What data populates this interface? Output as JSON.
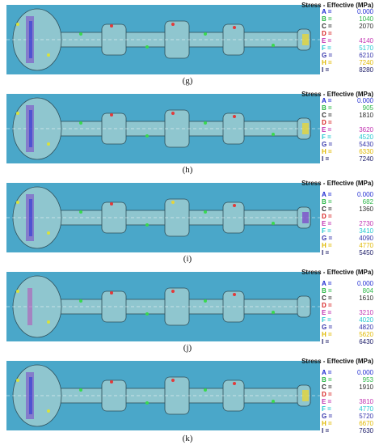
{
  "panels": [
    {
      "header": "Stress - Effective (MPa)",
      "caption": "(g)",
      "legend": [
        {
          "letter": "A =",
          "value": "0.000",
          "color": "#1f2bd1"
        },
        {
          "letter": "B =",
          "value": "1040",
          "color": "#2eb84a"
        },
        {
          "letter": "C =",
          "value": "2070",
          "color": "#2b2b2b"
        },
        {
          "letter": "D =",
          "value": "",
          "color": "#d92626"
        },
        {
          "letter": "E =",
          "value": "4140",
          "color": "#c030b0"
        },
        {
          "letter": "F =",
          "value": "5170",
          "color": "#23c8d0"
        },
        {
          "letter": "G =",
          "value": "6210",
          "color": "#3333aa"
        },
        {
          "letter": "H =",
          "value": "7240",
          "color": "#e0b800"
        },
        {
          "letter": "I =",
          "value": "8280",
          "color": "#1a1a66"
        }
      ]
    },
    {
      "header": "Stress - Effective (MPa)",
      "caption": "(h)",
      "legend": [
        {
          "letter": "A =",
          "value": "0.000",
          "color": "#1f2bd1"
        },
        {
          "letter": "B =",
          "value": "905",
          "color": "#2eb84a"
        },
        {
          "letter": "C =",
          "value": "1810",
          "color": "#2b2b2b"
        },
        {
          "letter": "D =",
          "value": "",
          "color": "#d92626"
        },
        {
          "letter": "E =",
          "value": "3620",
          "color": "#c030b0"
        },
        {
          "letter": "F =",
          "value": "4520",
          "color": "#23c8d0"
        },
        {
          "letter": "G =",
          "value": "5430",
          "color": "#3333aa"
        },
        {
          "letter": "H =",
          "value": "6330",
          "color": "#e0b800"
        },
        {
          "letter": "I =",
          "value": "7240",
          "color": "#1a1a66"
        }
      ]
    },
    {
      "header": "Stress - Effective (MPa)",
      "caption": "(i)",
      "legend": [
        {
          "letter": "A =",
          "value": "0.000",
          "color": "#1f2bd1"
        },
        {
          "letter": "B =",
          "value": "682",
          "color": "#2eb84a"
        },
        {
          "letter": "C =",
          "value": "1360",
          "color": "#2b2b2b"
        },
        {
          "letter": "D =",
          "value": "",
          "color": "#d92626"
        },
        {
          "letter": "E =",
          "value": "2730",
          "color": "#c030b0"
        },
        {
          "letter": "F =",
          "value": "3410",
          "color": "#23c8d0"
        },
        {
          "letter": "G =",
          "value": "4090",
          "color": "#3333aa"
        },
        {
          "letter": "H =",
          "value": "4770",
          "color": "#e0b800"
        },
        {
          "letter": "I =",
          "value": "5450",
          "color": "#1a1a66"
        }
      ]
    },
    {
      "header": "Stress - Effective (MPa)",
      "caption": "(j)",
      "legend": [
        {
          "letter": "A =",
          "value": "0.000",
          "color": "#1f2bd1"
        },
        {
          "letter": "B =",
          "value": "804",
          "color": "#2eb84a"
        },
        {
          "letter": "C =",
          "value": "1610",
          "color": "#2b2b2b"
        },
        {
          "letter": "D =",
          "value": "",
          "color": "#d92626"
        },
        {
          "letter": "E =",
          "value": "3210",
          "color": "#c030b0"
        },
        {
          "letter": "F =",
          "value": "4020",
          "color": "#23c8d0"
        },
        {
          "letter": "G =",
          "value": "4820",
          "color": "#3333aa"
        },
        {
          "letter": "H =",
          "value": "5620",
          "color": "#e0b800"
        },
        {
          "letter": "I =",
          "value": "6430",
          "color": "#1a1a66"
        }
      ]
    },
    {
      "header": "Stress - Effective (MPa)",
      "caption": "(k)",
      "legend": [
        {
          "letter": "A =",
          "value": "0.000",
          "color": "#1f2bd1"
        },
        {
          "letter": "B =",
          "value": "953",
          "color": "#2eb84a"
        },
        {
          "letter": "C =",
          "value": "1910",
          "color": "#2b2b2b"
        },
        {
          "letter": "D =",
          "value": "",
          "color": "#d92626"
        },
        {
          "letter": "E =",
          "value": "3810",
          "color": "#c030b0"
        },
        {
          "letter": "F =",
          "value": "4770",
          "color": "#23c8d0"
        },
        {
          "letter": "G =",
          "value": "5720",
          "color": "#3333aa"
        },
        {
          "letter": "H =",
          "value": "6670",
          "color": "#e0b800"
        },
        {
          "letter": "I =",
          "value": "7630",
          "color": "#1a1a66"
        }
      ]
    }
  ],
  "colors": {
    "plot_background": "#4aa7c9",
    "shaft_fill": "#8fc6cf",
    "shaft_outline": "#2f4f5a"
  }
}
